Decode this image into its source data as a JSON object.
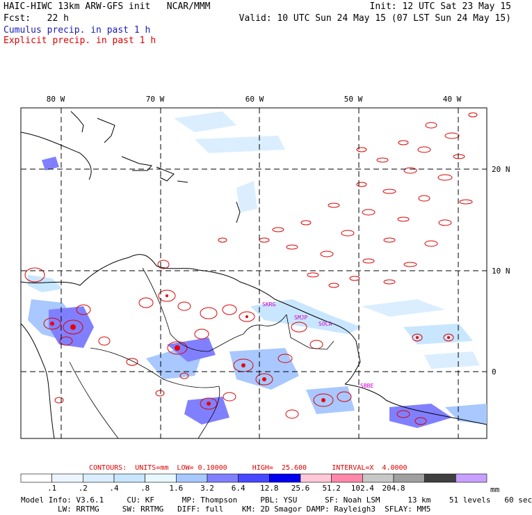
{
  "header": {
    "title": "HAIC-HIWC 13km ARW-GFS init   NCAR/MMM",
    "init": "Init: 12 UTC Sat 23 May 15",
    "fcst": "Fcst:   22 h",
    "valid": "Valid: 10 UTC Sun 24 May 15 (07 LST Sun 24 May 15)",
    "legend_cumulus": "Cumulus precip. in past 1 h",
    "legend_explicit": "Explicit precip. in past 1 h"
  },
  "map": {
    "lon_labels": [
      "80 W",
      "70 W",
      "60 W",
      "50 W",
      "40 W"
    ],
    "lat_labels": [
      "20 N",
      "10 N",
      "0"
    ],
    "stations": [
      "SKRG",
      "SMJP",
      "SOCA",
      "SBBE"
    ],
    "colors": {
      "explicit": "#dd0000",
      "cumulus": "#3030e0",
      "grid": "#000000"
    }
  },
  "contours": {
    "text": "CONTOURS:  UNITS=mm  LOW= 0.10000      HIGH=  25.600      INTERVAL=X  4.0000"
  },
  "colorbar": {
    "unit": "mm",
    "labels": [
      ".1",
      ".2",
      ".4",
      ".8",
      "1.6",
      "3.2",
      "6.4",
      "12.8",
      "25.6",
      "51.2",
      "102.4",
      "204.8"
    ],
    "colors": [
      "#ffffff",
      "#ecf5ff",
      "#daeeff",
      "#c8e6ff",
      "#e8f8ff",
      "#a8c8ff",
      "#8080ff",
      "#4848ff",
      "#0000ee",
      "#ffc8d8",
      "#ff88aa",
      "#c8c8c8",
      "#a0a0a0",
      "#404040",
      "#c8a0ff"
    ]
  },
  "model_info": {
    "line1": "Model Info: V3.6.1     CU: KF      MP: Thompson     PBL: YSU      SF: Noah LSM      13 km    51 levels   60 sec",
    "line2": "        LW: RRTMG     SW: RRTMG   DIFF: full    KM: 2D Smagor DAMP: Rayleigh3  SFLAY: MM5"
  }
}
